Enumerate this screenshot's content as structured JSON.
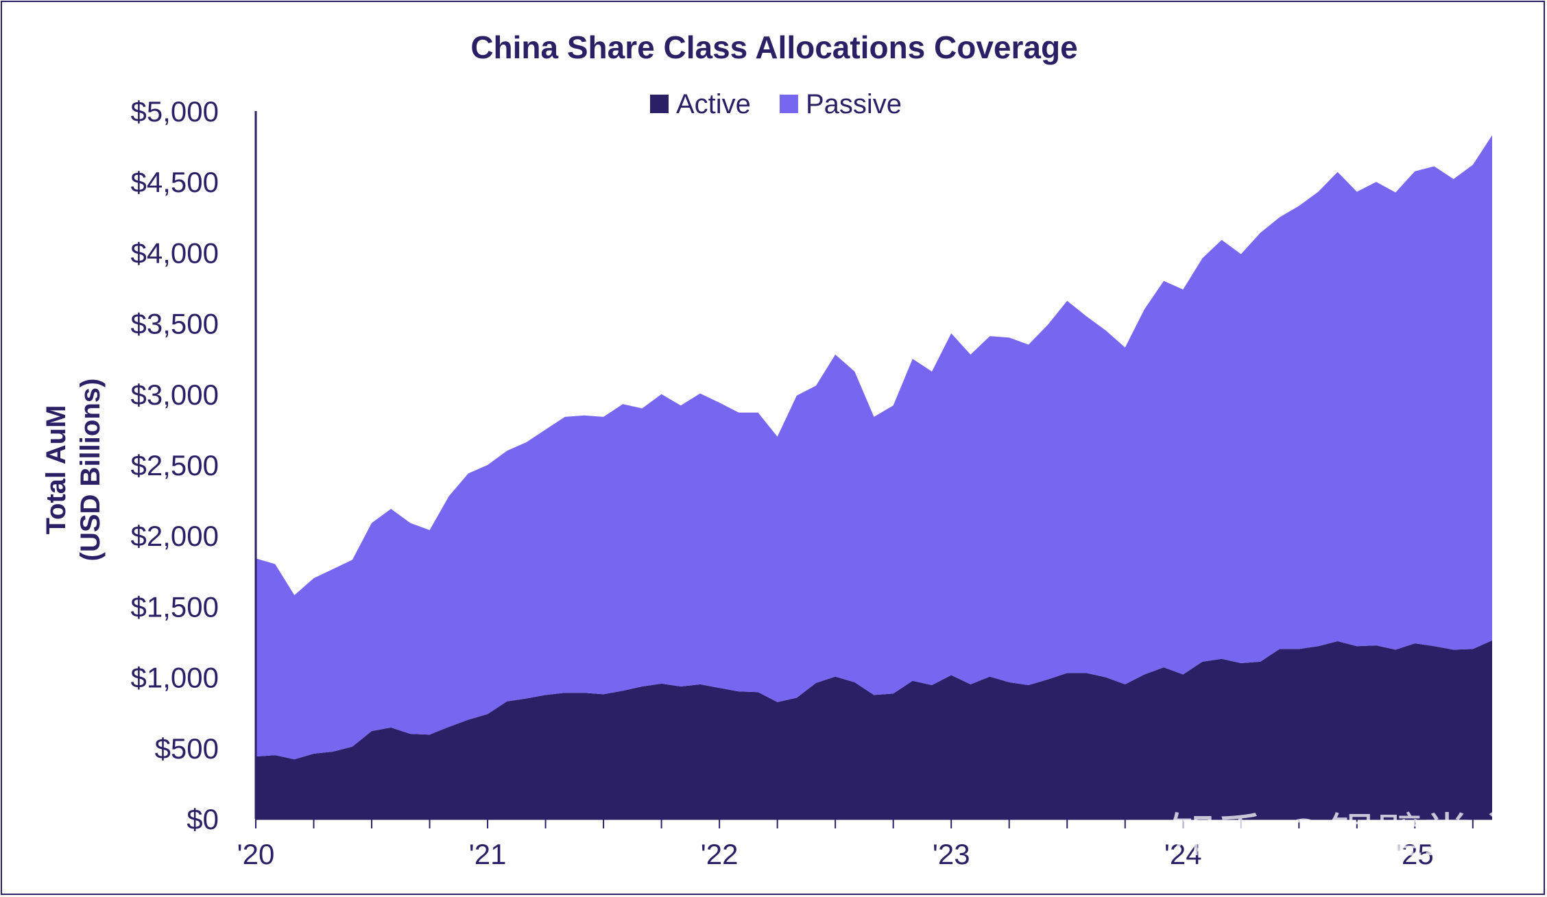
{
  "chart_data": {
    "type": "area",
    "title": "China Share Class Allocations Coverage",
    "ylabel_line1": "Total AuM",
    "ylabel_line2": "(USD Billions)",
    "xlabel": "",
    "ylim": [
      0,
      5000
    ],
    "yticks": [
      0,
      500,
      1000,
      1500,
      2000,
      2500,
      3000,
      3500,
      4000,
      4500,
      5000
    ],
    "ytick_labels": [
      "$0",
      "$500",
      "$1,000",
      "$1,500",
      "$2,000",
      "$2,500",
      "$3,000",
      "$3,500",
      "$4,000",
      "$4,500",
      "$5,000"
    ],
    "xtick_labels": [
      "'20",
      "'21",
      "'22",
      "'23",
      "'24",
      "'25"
    ],
    "xtick_positions": [
      0,
      12,
      24,
      36,
      48,
      60
    ],
    "x_start": "2020-01",
    "x_end": "2025-04",
    "stacked": true,
    "legend_position": "top-center",
    "grid": false,
    "series": [
      {
        "name": "Active",
        "color": "#2b1f66",
        "values": [
          440,
          450,
          420,
          460,
          475,
          510,
          620,
          645,
          600,
          595,
          650,
          700,
          740,
          830,
          850,
          875,
          890,
          890,
          880,
          905,
          935,
          955,
          935,
          950,
          925,
          900,
          895,
          825,
          855,
          960,
          1005,
          965,
          875,
          885,
          975,
          945,
          1015,
          950,
          1005,
          965,
          945,
          985,
          1030,
          1030,
          1000,
          950,
          1020,
          1070,
          1020,
          1110,
          1130,
          1100,
          1110,
          1200,
          1200,
          1220,
          1255,
          1220,
          1225,
          1195,
          1240,
          1220,
          1195,
          1200,
          1260
        ]
      },
      {
        "name": "Passive",
        "color": "#7766f0",
        "values": [
          1400,
          1350,
          1160,
          1240,
          1290,
          1320,
          1470,
          1545,
          1490,
          1445,
          1630,
          1740,
          1760,
          1770,
          1810,
          1875,
          1950,
          1960,
          1960,
          2025,
          1965,
          2045,
          1985,
          2055,
          2015,
          1970,
          1975,
          1875,
          2135,
          2100,
          2275,
          2195,
          1965,
          2035,
          2275,
          2215,
          2415,
          2330,
          2405,
          2435,
          2405,
          2505,
          2630,
          2520,
          2450,
          2380,
          2580,
          2730,
          2720,
          2850,
          2960,
          2890,
          3030,
          3050,
          3130,
          3210,
          3315,
          3210,
          3275,
          3230,
          3335,
          3390,
          3325,
          3420,
          3570
        ]
      }
    ]
  },
  "watermark": "知乎 @锡璧堂主"
}
